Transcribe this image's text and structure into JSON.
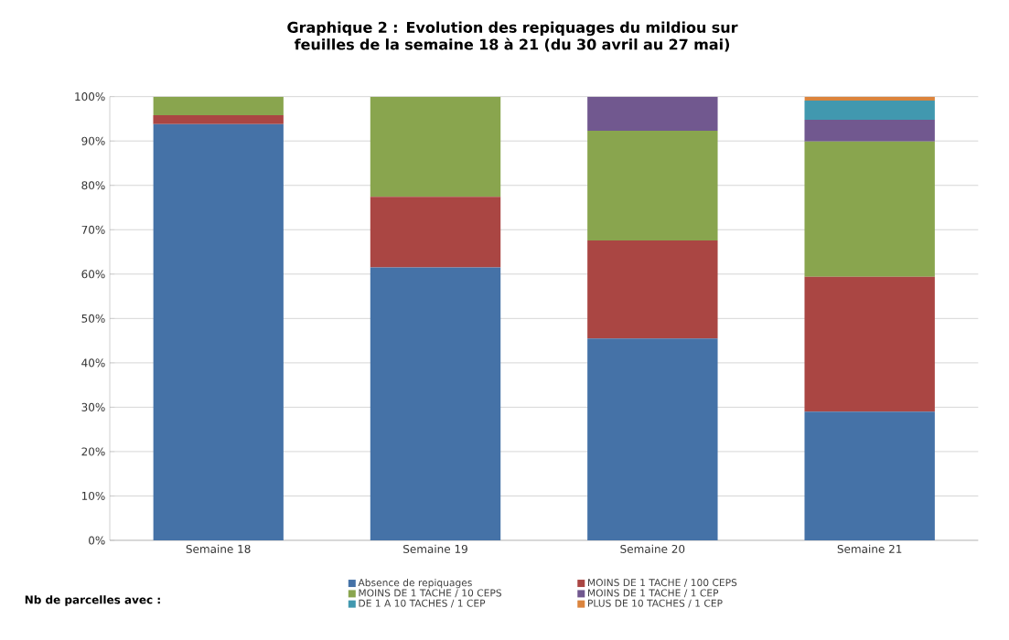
{
  "chart_data": {
    "type": "bar",
    "stacked": true,
    "title": "Graphique 2 : Evolution des repiquages du mildiou sur feuilles de la semaine 18 à 21 (du 30 avril au 27 mai)",
    "legend_title": "Nb de parcelles avec :",
    "categories": [
      "Semaine 18",
      "Semaine 19",
      "Semaine 20",
      "Semaine 21"
    ],
    "series": [
      {
        "name": "Absence de repiquages",
        "color": "#4572a7",
        "values": [
          93.8,
          61.5,
          45.5,
          29.0
        ]
      },
      {
        "name": "MOINS DE 1 TACHE / 100 CEPS",
        "color": "#aa4643",
        "values": [
          2.0,
          15.9,
          22.1,
          30.4
        ]
      },
      {
        "name": "MOINS DE 1 TACHE / 10 CEPS",
        "color": "#89a54e",
        "values": [
          4.2,
          22.6,
          24.7,
          30.5
        ]
      },
      {
        "name": "MOINS DE 1 TACHE / 1 CEP",
        "color": "#71588f",
        "values": [
          0,
          0,
          7.7,
          4.9
        ]
      },
      {
        "name": "DE 1 A 10 TACHES / 1 CEP",
        "color": "#4198af",
        "values": [
          0,
          0,
          0,
          4.3
        ]
      },
      {
        "name": "PLUS DE 10 TACHES / 1 CEP",
        "color": "#db843d",
        "values": [
          0,
          0,
          0,
          0.9
        ]
      }
    ],
    "ylim": [
      0,
      100
    ],
    "yticks": [
      {
        "value": 0,
        "label": "0%"
      },
      {
        "value": 10,
        "label": "10%"
      },
      {
        "value": 20,
        "label": "20%"
      },
      {
        "value": 30,
        "label": "30%"
      },
      {
        "value": 40,
        "label": "40%"
      },
      {
        "value": 50,
        "label": "50%"
      },
      {
        "value": 60,
        "label": "60%"
      },
      {
        "value": 70,
        "label": "70%"
      },
      {
        "value": 80,
        "label": "80%"
      },
      {
        "value": 90,
        "label": "90%"
      },
      {
        "value": 100,
        "label": "100%"
      }
    ],
    "grid": "y",
    "legend": "bottom"
  }
}
